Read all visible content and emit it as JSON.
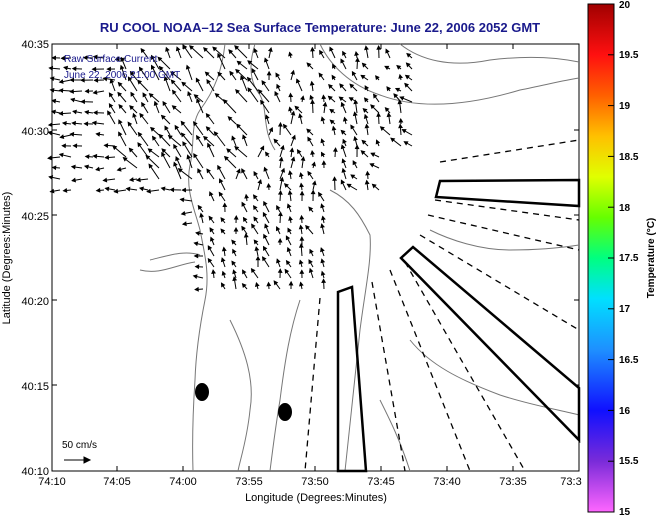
{
  "title": "RU COOL   NOAA–12  Sea Surface Temperature:  June 22, 2006 2052 GMT",
  "legend": {
    "line1": "Raw Surface Current",
    "line2": "June 22, 2006 21:00 GMT",
    "scale_label": "50 cm/s"
  },
  "axes": {
    "xlabel": "Longitude (Degrees:Minutes)",
    "ylabel": "Latitude (Degrees:Minutes)",
    "x_ticks": [
      "74:10",
      "74:05",
      "74:00",
      "73:55",
      "73:50",
      "73:45",
      "73:40",
      "73:35",
      "73:3"
    ],
    "y_ticks": [
      "40:35",
      "40:30",
      "40:25",
      "40:20",
      "40:15",
      "40:10"
    ]
  },
  "colorbar": {
    "label": "Temperature (°C)",
    "ticks": [
      "20",
      "19.5",
      "19",
      "18.5",
      "18",
      "17.5",
      "17",
      "16.5",
      "16",
      "15.5",
      "15"
    ],
    "min": 15,
    "max": 20
  },
  "colors": {
    "title": "#1a1a8c",
    "legend_text": "#1a1a8c",
    "coast": "#777777",
    "arrows": "#000000"
  }
}
